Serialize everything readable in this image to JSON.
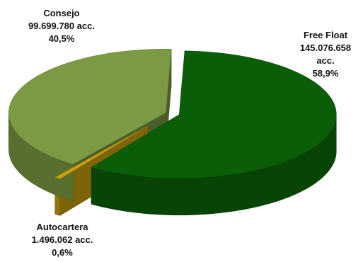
{
  "chart_data": {
    "type": "pie",
    "title": "",
    "variant": "3d-exploded",
    "slices": [
      {
        "name": "Free Float",
        "shares": 145076658,
        "percent": 58.9,
        "color": "#0b5e08",
        "label_lines": [
          "Free Float",
          "145.076.658",
          "acc.",
          "58,9%"
        ]
      },
      {
        "name": "Autocartera",
        "shares": 1496062,
        "percent": 0.6,
        "color": "#c9a20b",
        "label_lines": [
          "Autocartera",
          "1.496.062 acc.",
          "0,6%"
        ]
      },
      {
        "name": "Consejo",
        "shares": 99699780,
        "percent": 40.5,
        "color": "#7b9a43",
        "label_lines": [
          "Consejo",
          "99.699.780 acc.",
          "40,5%"
        ]
      }
    ]
  }
}
